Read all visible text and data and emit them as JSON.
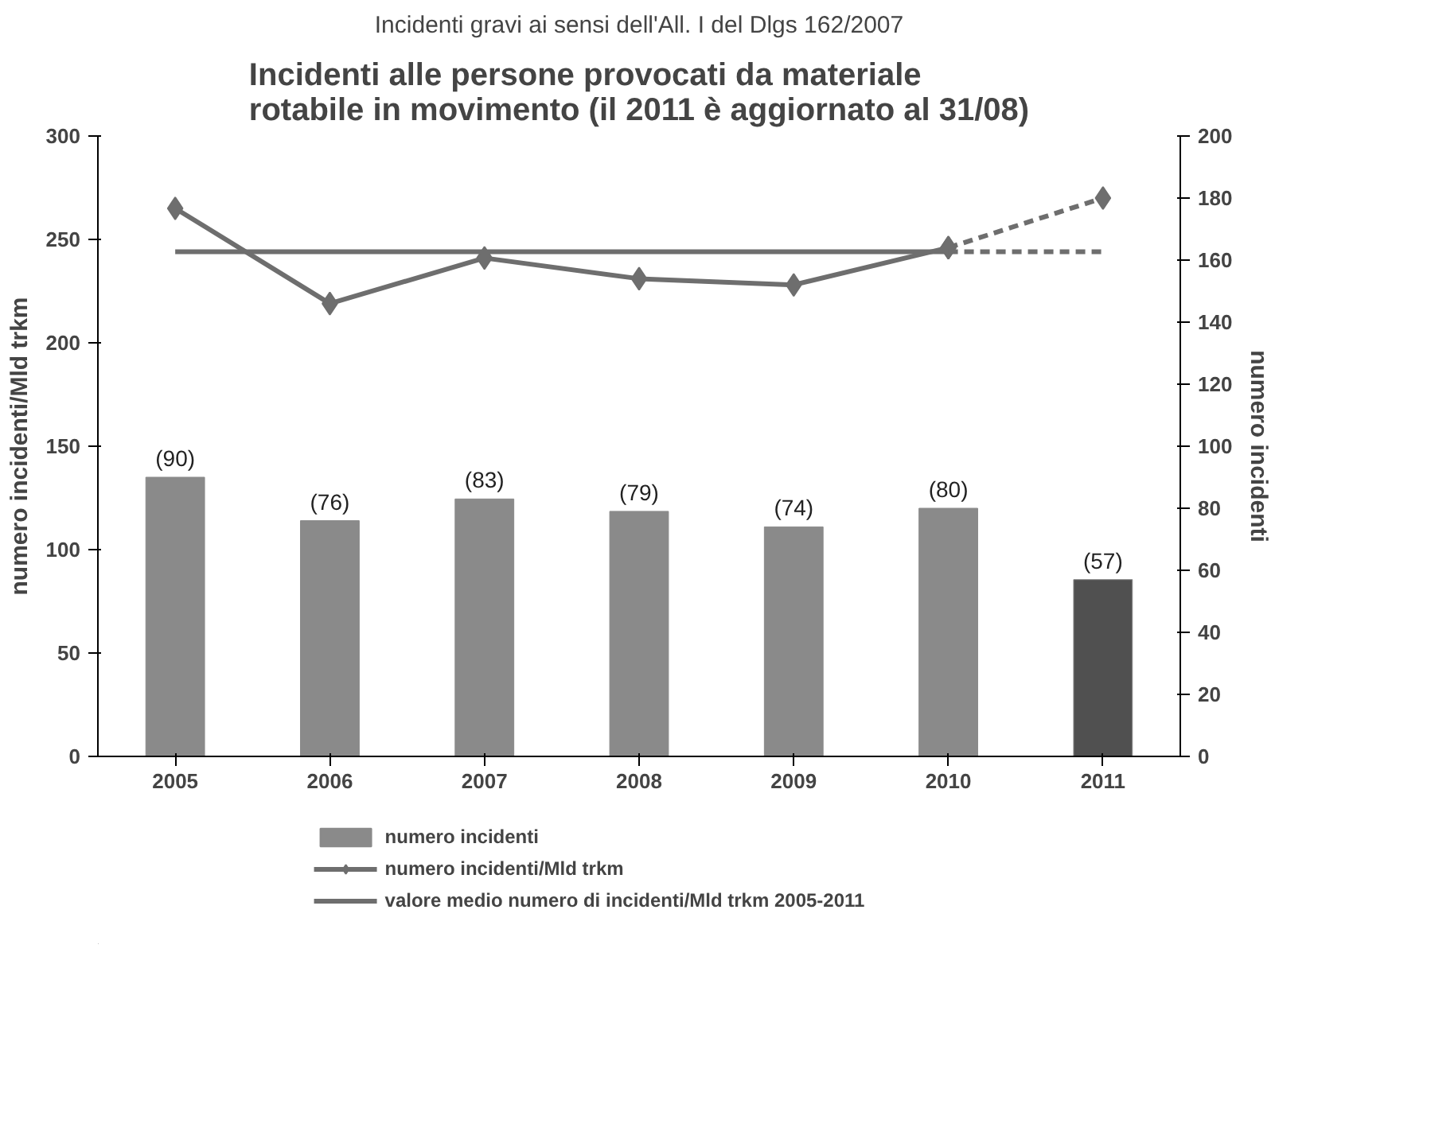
{
  "chart_data": {
    "type": "bar",
    "subtitle": "Incidenti gravi ai sensi dell'All. I del Dlgs 162/2007",
    "title": "Incidenti alle persone provocati da materiale rotabile in movimento (il 2011 è aggiornato al 31/08)",
    "ylabel": "numero incidenti/Mld trkm",
    "y2label": "numero incidenti",
    "categories": [
      "2005",
      "2006",
      "2007",
      "2008",
      "2009",
      "2010",
      "2011"
    ],
    "ylim": [
      0,
      300
    ],
    "yticks": [
      0,
      50,
      100,
      150,
      200,
      250,
      300
    ],
    "y2lim": [
      0,
      200
    ],
    "y2ticks": [
      0,
      20,
      40,
      60,
      80,
      100,
      120,
      140,
      160,
      180,
      200
    ],
    "legend": "bottom",
    "grid": false,
    "series": [
      {
        "name": "numero incidenti",
        "axis": "y2",
        "color": "#8a8a8a",
        "colors": [
          "#8a8a8a",
          "#8a8a8a",
          "#8a8a8a",
          "#8a8a8a",
          "#8a8a8a",
          "#8a8a8a",
          "#505050"
        ],
        "values": [
          90,
          76,
          83,
          79,
          74,
          80,
          57
        ],
        "value_labels": [
          "(90)",
          "(76)",
          "(83)",
          "(79)",
          "(74)",
          "(80)",
          "(57)"
        ]
      },
      {
        "name": "numero incidenti/Mld trkm",
        "type": "line",
        "color": "#6e6e6e",
        "marker": "diamond",
        "line_style": "solid",
        "values": [
          265,
          219,
          241,
          231,
          228,
          246,
          null
        ]
      },
      {
        "type": "line",
        "color": "#6e6e6e",
        "marker": "diamond",
        "line_style": "dashed",
        "values": [
          null,
          null,
          null,
          null,
          null,
          246,
          270
        ]
      },
      {
        "name": "valore medio numero di incidenti/Mld trkm 2005-2011",
        "type": "line",
        "color": "#6e6e6e",
        "marker": "none",
        "line_style": "solid",
        "values": [
          244,
          244,
          244,
          244,
          244,
          244,
          null
        ]
      },
      {
        "type": "line",
        "color": "#6e6e6e",
        "marker": "none",
        "line_style": "dashed",
        "values": [
          null,
          null,
          null,
          null,
          null,
          244,
          244
        ]
      }
    ]
  }
}
